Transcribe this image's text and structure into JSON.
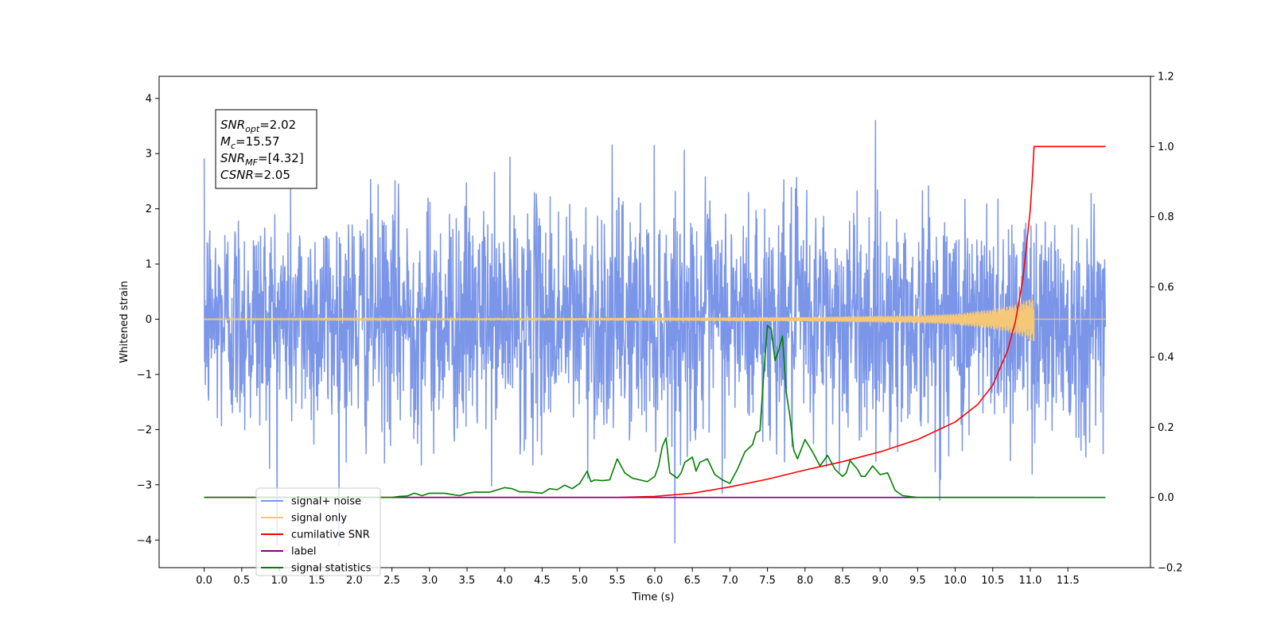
{
  "chart_data": {
    "type": "line",
    "xlabel": "Time (s)",
    "ylabel": "Whitened strain",
    "xlim": [
      -0.6,
      12.6
    ],
    "ylim": [
      -4.5,
      4.4
    ],
    "ylim_right": [
      -0.2,
      1.2
    ],
    "x_ticks": [
      0.0,
      0.5,
      1.0,
      1.5,
      2.0,
      2.5,
      3.0,
      3.5,
      4.0,
      4.5,
      5.0,
      5.5,
      6.0,
      6.5,
      7.0,
      7.5,
      8.0,
      8.5,
      9.0,
      9.5,
      10.0,
      10.5,
      11.0,
      11.5
    ],
    "x_tick_labels": [
      "0.0",
      "0.5",
      "1.0",
      "1.5",
      "2.0",
      "2.5",
      "3.0",
      "3.5",
      "4.0",
      "4.5",
      "5.0",
      "5.5",
      "6.0",
      "6.5",
      "7.0",
      "7.5",
      "8.0",
      "8.5",
      "9.0",
      "9.5",
      "10.0",
      "10.5",
      "11.0",
      "11.5"
    ],
    "y_ticks": [
      -4,
      -3,
      -2,
      -1,
      0,
      1,
      2,
      3,
      4
    ],
    "y_tick_labels": [
      "−4",
      "−3",
      "−2",
      "−1",
      "0",
      "1",
      "2",
      "3",
      "4"
    ],
    "y_ticks_right": [
      -0.2,
      0.0,
      0.2,
      0.4,
      0.6,
      0.8,
      1.0,
      1.2
    ],
    "y_tick_labels_right": [
      "−0.2",
      "0.0",
      "0.2",
      "0.4",
      "0.6",
      "0.8",
      "1.0",
      "1.2"
    ],
    "grid": false,
    "legend_position": "lower-left",
    "annotation": [
      {
        "symbol": "SNR",
        "sub": "opt",
        "value": "=2.02"
      },
      {
        "symbol": "M",
        "sub": "c",
        "value": "=15.57"
      },
      {
        "symbol": "SNR",
        "sub": "MF",
        "value": "=[4.32]"
      },
      {
        "symbol": "CSNR",
        "sub": "",
        "value": "=2.05"
      }
    ],
    "series": [
      {
        "name": "signal+ noise",
        "axis": "left",
        "color": "#7b96e8",
        "kind": "noise",
        "x_range": [
          0.0,
          12.0
        ],
        "amplitude_range": [
          -4.1,
          4.0
        ]
      },
      {
        "name": "signal only",
        "axis": "left",
        "color": "#f5c878",
        "kind": "chirp",
        "x_range": [
          0.0,
          11.05
        ],
        "envelope": [
          [
            0.0,
            0.005
          ],
          [
            5.0,
            0.02
          ],
          [
            8.0,
            0.04
          ],
          [
            9.5,
            0.07
          ],
          [
            10.0,
            0.1
          ],
          [
            10.5,
            0.18
          ],
          [
            10.8,
            0.27
          ],
          [
            11.0,
            0.38
          ],
          [
            11.05,
            0.42
          ]
        ]
      },
      {
        "name": "cumilative SNR",
        "axis": "right",
        "color": "#ff0000",
        "x": [
          0.0,
          5.5,
          6.0,
          6.5,
          7.0,
          7.5,
          8.0,
          8.5,
          9.0,
          9.5,
          10.0,
          10.3,
          10.5,
          10.7,
          10.8,
          10.9,
          11.0,
          11.03,
          11.05,
          11.06,
          12.0
        ],
        "y": [
          0.0,
          0.0,
          0.003,
          0.012,
          0.03,
          0.052,
          0.078,
          0.102,
          0.13,
          0.165,
          0.215,
          0.265,
          0.32,
          0.42,
          0.5,
          0.62,
          0.82,
          0.92,
          1.0,
          1.0,
          1.0
        ]
      },
      {
        "name": "label",
        "axis": "right",
        "color": "#800080",
        "x": [
          0.0,
          11.05
        ],
        "y": [
          0.0,
          0.0
        ]
      },
      {
        "name": "signal statistics",
        "axis": "right",
        "color": "#008000",
        "x": [
          0.0,
          2.5,
          2.6,
          2.7,
          2.8,
          2.9,
          3.0,
          3.2,
          3.4,
          3.5,
          3.6,
          3.8,
          4.0,
          4.1,
          4.2,
          4.3,
          4.5,
          4.6,
          4.7,
          4.8,
          4.9,
          5.0,
          5.1,
          5.15,
          5.2,
          5.3,
          5.4,
          5.5,
          5.6,
          5.7,
          5.8,
          5.9,
          6.0,
          6.05,
          6.1,
          6.15,
          6.2,
          6.3,
          6.35,
          6.4,
          6.5,
          6.55,
          6.6,
          6.7,
          6.8,
          6.9,
          7.0,
          7.1,
          7.2,
          7.3,
          7.35,
          7.4,
          7.45,
          7.5,
          7.55,
          7.6,
          7.65,
          7.7,
          7.75,
          7.8,
          7.85,
          7.9,
          8.0,
          8.1,
          8.2,
          8.3,
          8.4,
          8.5,
          8.55,
          8.6,
          8.7,
          8.75,
          8.8,
          8.9,
          9.0,
          9.1,
          9.2,
          9.3,
          9.5,
          10.0,
          11.0,
          12.0
        ],
        "y": [
          0.0,
          0.0,
          0.003,
          0.004,
          0.012,
          0.005,
          0.012,
          0.012,
          0.005,
          0.012,
          0.015,
          0.015,
          0.028,
          0.025,
          0.016,
          0.016,
          0.012,
          0.025,
          0.022,
          0.035,
          0.025,
          0.04,
          0.075,
          0.045,
          0.05,
          0.048,
          0.05,
          0.11,
          0.07,
          0.055,
          0.05,
          0.045,
          0.06,
          0.09,
          0.145,
          0.17,
          0.07,
          0.055,
          0.07,
          0.1,
          0.115,
          0.075,
          0.1,
          0.11,
          0.065,
          0.05,
          0.04,
          0.08,
          0.13,
          0.15,
          0.185,
          0.19,
          0.35,
          0.49,
          0.48,
          0.39,
          0.42,
          0.46,
          0.3,
          0.23,
          0.135,
          0.11,
          0.165,
          0.13,
          0.09,
          0.12,
          0.08,
          0.06,
          0.07,
          0.105,
          0.08,
          0.06,
          0.06,
          0.09,
          0.065,
          0.07,
          0.02,
          0.005,
          0.0,
          0.0,
          0.0,
          0.0
        ]
      }
    ]
  }
}
